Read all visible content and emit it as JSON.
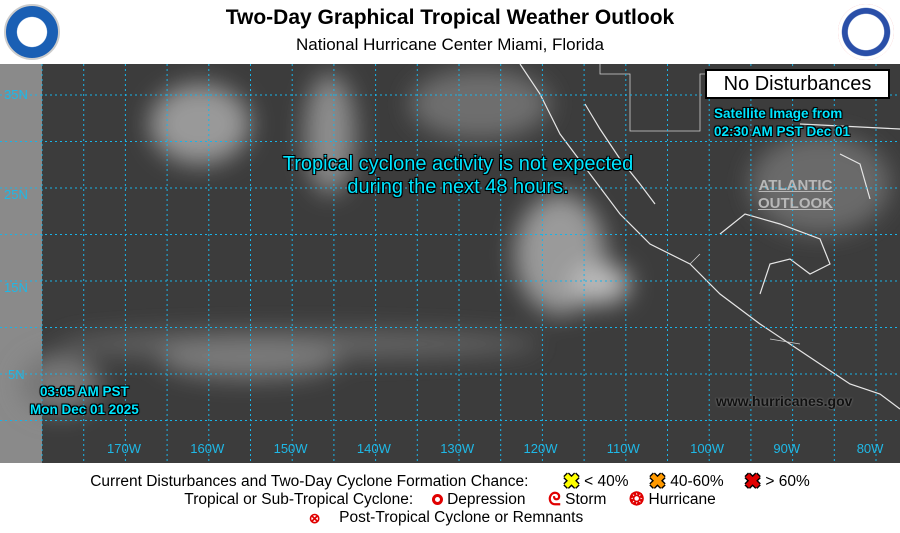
{
  "header": {
    "title": "Two-Day Graphical Tropical Weather Outlook",
    "subtitle": "National Hurricane Center  Miami, Florida",
    "left_logo": "NOAA",
    "right_logo": "NATIONAL WEATHER SERVICE"
  },
  "map": {
    "status_box": "No Disturbances",
    "satellite_line1": "Satellite Image from",
    "satellite_line2": "02:30 AM PST Dec 01",
    "message_line1": "Tropical cyclone activity is not expected",
    "message_line2": "during the next 48 hours.",
    "atlantic_line1": "ATLANTIC",
    "atlantic_line2": "OUTLOOK",
    "issued_time": "03:05 AM PST",
    "issued_date": "Mon Dec 01 2025",
    "website": "www.hurricanes.gov",
    "lat_labels": [
      "35N",
      "25N",
      "15N",
      "5N"
    ],
    "lon_labels": [
      "170W",
      "160W",
      "150W",
      "140W",
      "130W",
      "120W",
      "110W",
      "100W",
      "90W",
      "80W"
    ]
  },
  "legend": {
    "row1_label": "Current Disturbances and Two-Day Cyclone Formation Chance:",
    "low": "< 40%",
    "medium": "40-60%",
    "high": "> 60%",
    "colors": {
      "low": "#ffff00",
      "medium": "#ff9900",
      "high": "#e00000",
      "cyclone": "#e00000"
    },
    "row2_label": "Tropical or Sub-Tropical Cyclone:",
    "depression": "Depression",
    "storm": "Storm",
    "hurricane": "Hurricane",
    "post_tropical": "Post-Tropical Cyclone or Remnants"
  }
}
